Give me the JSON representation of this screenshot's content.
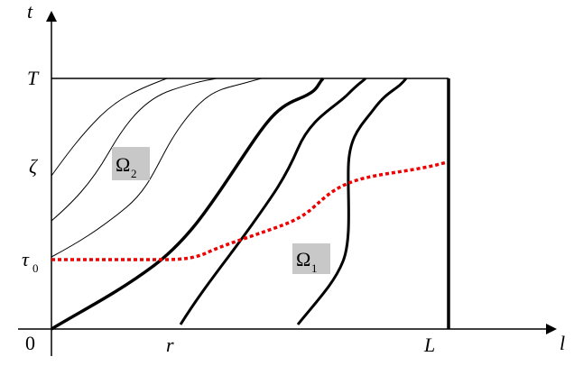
{
  "axes": {
    "y_label": "t",
    "x_label": "l",
    "origin": "0"
  },
  "y_ticks": [
    {
      "text": "T"
    },
    {
      "text": "ζ"
    },
    {
      "text": "τ",
      "sub": "0"
    }
  ],
  "x_ticks": [
    {
      "text": "r"
    },
    {
      "text": "L"
    }
  ],
  "regions": [
    {
      "text": "Ω",
      "sub": "2"
    },
    {
      "text": "Ω",
      "sub": "1"
    }
  ]
}
